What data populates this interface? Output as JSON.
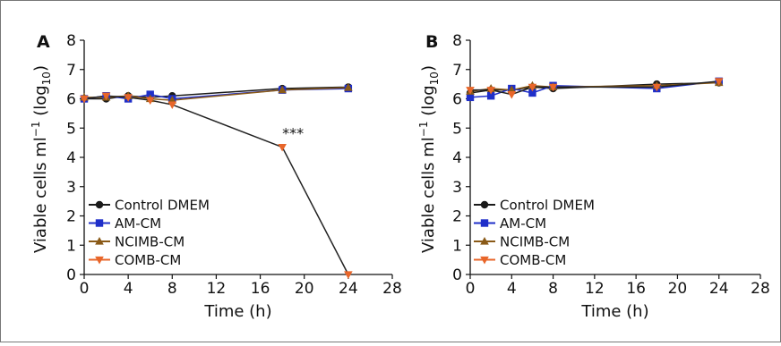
{
  "chart_data": [
    {
      "type": "line",
      "panel_label": "A",
      "xlabel": "Time (h)",
      "ylabel": "Viable cells ml",
      "ylabel_sup": "−1",
      "ylabel_log_prefix": " (log",
      "ylabel_log_sub": "10",
      "ylabel_log_suffix": ")",
      "xlim": [
        0,
        28
      ],
      "ylim": [
        0,
        8
      ],
      "xticks": [
        "0",
        "4",
        "8",
        "12",
        "16",
        "20",
        "24",
        "28"
      ],
      "yticks": [
        "0",
        "1",
        "2",
        "3",
        "4",
        "5",
        "6",
        "7",
        "8"
      ],
      "grid": false,
      "legend_position": "bottom-left",
      "series": [
        {
          "name": "Control DMEM",
          "color": "#1a1a1a",
          "marker": "circle",
          "x": [
            0,
            2,
            4,
            6,
            8,
            18,
            24
          ],
          "y": [
            6.0,
            6.0,
            6.1,
            6.05,
            6.1,
            6.35,
            6.4
          ]
        },
        {
          "name": "AM-CM",
          "color": "#1f2fc9",
          "marker": "square",
          "x": [
            0,
            2,
            4,
            6,
            8,
            18,
            24
          ],
          "y": [
            6.0,
            6.1,
            6.0,
            6.15,
            6.0,
            6.3,
            6.35
          ]
        },
        {
          "name": "NCIMB-CM",
          "color": "#8a5a18",
          "marker": "triangle-up",
          "x": [
            0,
            2,
            4,
            6,
            8,
            18,
            24
          ],
          "y": [
            6.05,
            6.05,
            6.1,
            6.0,
            5.95,
            6.3,
            6.38
          ]
        },
        {
          "name": "COMB-CM",
          "color": "#e8662a",
          "marker": "triangle-down",
          "x": [
            0,
            2,
            4,
            6,
            8,
            18,
            24
          ],
          "y": [
            6.0,
            6.1,
            6.05,
            5.95,
            5.8,
            4.35,
            0.0
          ]
        }
      ],
      "annotations": [
        {
          "text": "***",
          "x": 18,
          "y": 4.35
        }
      ]
    },
    {
      "type": "line",
      "panel_label": "B",
      "xlabel": "Time (h)",
      "ylabel": "Viable cells ml",
      "ylabel_sup": "−1",
      "ylabel_log_prefix": " (log",
      "ylabel_log_sub": "10",
      "ylabel_log_suffix": ")",
      "xlim": [
        0,
        28
      ],
      "ylim": [
        0,
        8
      ],
      "xticks": [
        "0",
        "4",
        "8",
        "12",
        "16",
        "20",
        "24",
        "28"
      ],
      "yticks": [
        "0",
        "1",
        "2",
        "3",
        "4",
        "5",
        "6",
        "7",
        "8"
      ],
      "grid": false,
      "legend_position": "bottom-left",
      "series": [
        {
          "name": "Control DMEM",
          "color": "#1a1a1a",
          "marker": "circle",
          "x": [
            0,
            2,
            4,
            6,
            8,
            18,
            24
          ],
          "y": [
            6.2,
            6.3,
            6.3,
            6.4,
            6.35,
            6.5,
            6.55
          ]
        },
        {
          "name": "AM-CM",
          "color": "#1f2fc9",
          "marker": "square",
          "x": [
            0,
            2,
            4,
            6,
            8,
            18,
            24
          ],
          "y": [
            6.05,
            6.1,
            6.35,
            6.2,
            6.45,
            6.35,
            6.6
          ]
        },
        {
          "name": "NCIMB-CM",
          "color": "#8a5a18",
          "marker": "triangle-up",
          "x": [
            0,
            2,
            4,
            6,
            8,
            18,
            24
          ],
          "y": [
            6.25,
            6.35,
            6.3,
            6.45,
            6.4,
            6.45,
            6.55
          ]
        },
        {
          "name": "COMB-CM",
          "color": "#e8662a",
          "marker": "triangle-down",
          "x": [
            0,
            2,
            4,
            6,
            8,
            18,
            24
          ],
          "y": [
            6.3,
            6.3,
            6.15,
            6.4,
            6.4,
            6.4,
            6.6
          ]
        }
      ],
      "annotations": []
    }
  ]
}
